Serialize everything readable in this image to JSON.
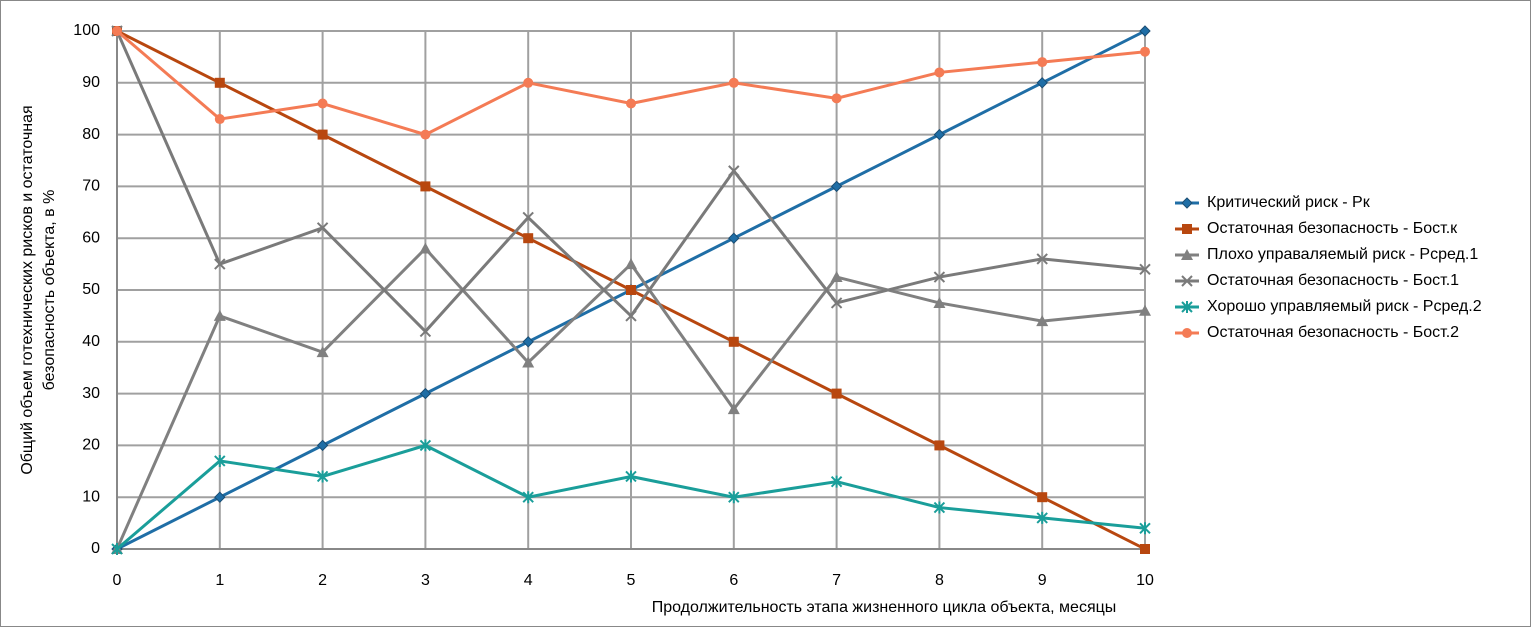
{
  "chart_data": {
    "type": "line",
    "y_axis_label": [
      "Общий объем готехнических рисков и остаточная",
      "безопасность объекта, в %"
    ],
    "x_axis_label": "Продолжительность этапа жизненного цикла объекта, месяцы",
    "x": [
      0,
      1,
      2,
      3,
      4,
      5,
      6,
      7,
      8,
      9,
      10
    ],
    "xlim": [
      0,
      10
    ],
    "xticks": [
      0,
      1,
      2,
      3,
      4,
      5,
      6,
      7,
      8,
      9,
      10
    ],
    "ylim": [
      0,
      100
    ],
    "yticks": [
      0,
      10,
      20,
      30,
      40,
      50,
      60,
      70,
      80,
      90,
      100
    ],
    "grid": true,
    "legend": "right",
    "series": [
      {
        "name": "Критический риск - Рк",
        "color": "#1f6ea6",
        "marker": "diamond",
        "values": [
          0,
          10,
          20,
          30,
          40,
          50,
          60,
          70,
          80,
          90,
          100
        ]
      },
      {
        "name": "Остаточная безопасность - Бост.к",
        "color": "#b8470f",
        "marker": "square",
        "values": [
          100,
          90,
          80,
          70,
          60,
          50,
          40,
          30,
          20,
          10,
          0
        ]
      },
      {
        "name": "Плохо управаляемый риск - Рсред.1",
        "color": "#808080",
        "marker": "triangle",
        "values": [
          0,
          45,
          38,
          58,
          36,
          55,
          27,
          52.5,
          47.5,
          44,
          46
        ]
      },
      {
        "name": "Остаточная безопасность - Бост.1",
        "color": "#7a7a7a",
        "marker": "x",
        "values": [
          100,
          55,
          62,
          42,
          64,
          45,
          73,
          47.5,
          52.5,
          56,
          54
        ]
      },
      {
        "name": "Хорошо управляемый риск - Рсред.2",
        "color": "#1a9e9a",
        "marker": "star",
        "values": [
          0,
          17,
          14,
          20,
          10,
          14,
          10,
          13,
          8,
          6,
          4
        ]
      },
      {
        "name": "Остаточная безопасность - Бост.2",
        "color": "#f47b55",
        "marker": "circle",
        "values": [
          100,
          83,
          86,
          80,
          90,
          86,
          90,
          87,
          92,
          94,
          96
        ]
      }
    ]
  }
}
